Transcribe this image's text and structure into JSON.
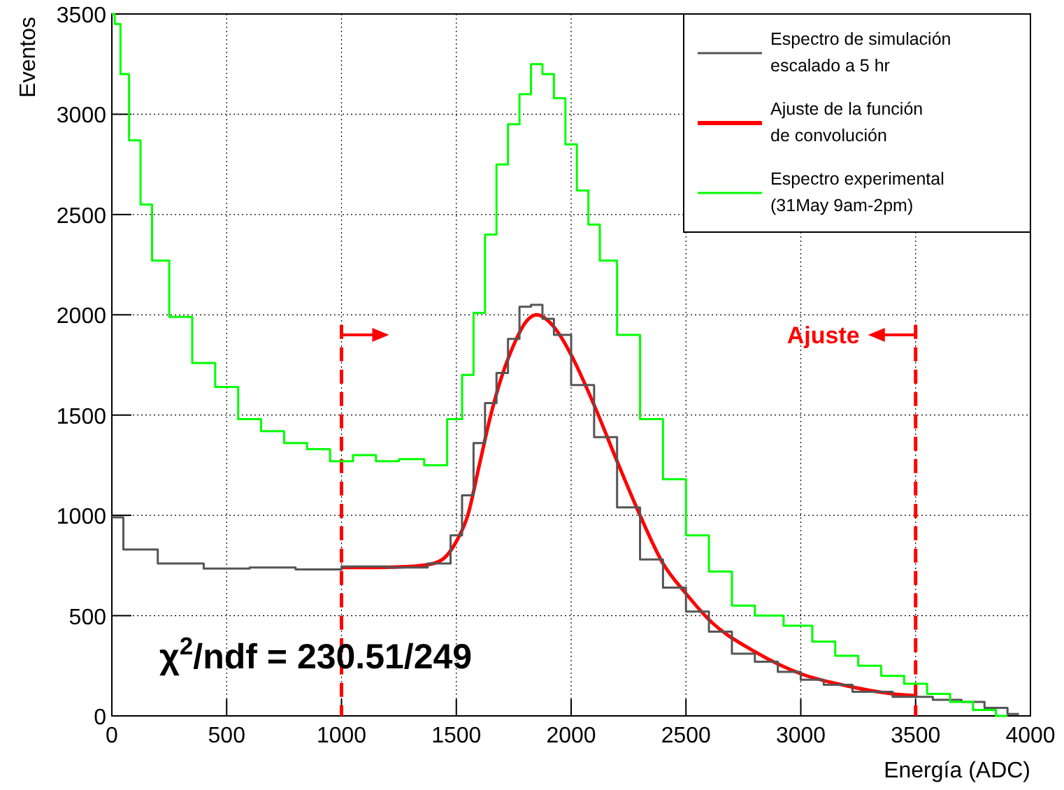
{
  "chart_data": {
    "type": "step",
    "xlabel": "Energía (ADC)",
    "ylabel": "Eventos",
    "xlim": [
      0,
      4000
    ],
    "ylim": [
      0,
      3500
    ],
    "xticks": [
      0,
      500,
      1000,
      1500,
      2000,
      2500,
      3000,
      3500,
      4000
    ],
    "yticks": [
      0,
      500,
      1000,
      1500,
      2000,
      2500,
      3000,
      3500
    ],
    "grid": true,
    "legend": "top right",
    "series": [
      {
        "name": "Espectro de simulación escalado a 5 hr",
        "color": "#555555",
        "x": [
          0,
          100,
          300,
          500,
          700,
          900,
          1100,
          1300,
          1450,
          1500,
          1550,
          1600,
          1650,
          1700,
          1750,
          1800,
          1850,
          1900,
          1950,
          2050,
          2150,
          2250,
          2350,
          2450,
          2550,
          2650,
          2750,
          2850,
          2950,
          3050,
          3150,
          3300,
          3500,
          3650,
          3750,
          3850,
          3950
        ],
        "values": [
          990,
          830,
          760,
          735,
          740,
          730,
          745,
          740,
          760,
          900,
          1100,
          1360,
          1560,
          1710,
          1880,
          2040,
          2050,
          1980,
          1900,
          1650,
          1390,
          1040,
          780,
          640,
          520,
          420,
          310,
          270,
          220,
          180,
          155,
          120,
          95,
          80,
          70,
          40,
          10
        ]
      },
      {
        "name": "Ajuste de la función de convolución",
        "type": "line",
        "color": "#ff0000",
        "x": [
          1000,
          1150,
          1300,
          1400,
          1450,
          1500,
          1550,
          1600,
          1650,
          1700,
          1750,
          1800,
          1850,
          1900,
          1950,
          2000,
          2100,
          2200,
          2300,
          2400,
          2500,
          2600,
          2800,
          3000,
          3200,
          3400,
          3500
        ],
        "values": [
          740,
          740,
          745,
          760,
          790,
          870,
          1000,
          1250,
          1500,
          1700,
          1850,
          1960,
          2000,
          1970,
          1900,
          1800,
          1550,
          1270,
          1000,
          760,
          610,
          480,
          320,
          210,
          150,
          110,
          100
        ]
      },
      {
        "name": "Espectro experimental (31May 9am-2pm)",
        "color": "#00ff00",
        "x": [
          0,
          25,
          50,
          100,
          150,
          200,
          300,
          400,
          500,
          600,
          700,
          800,
          900,
          1000,
          1100,
          1200,
          1300,
          1420,
          1500,
          1550,
          1600,
          1650,
          1700,
          1750,
          1800,
          1850,
          1900,
          1950,
          2000,
          2050,
          2100,
          2150,
          2250,
          2350,
          2450,
          2550,
          2650,
          2750,
          2850,
          3000,
          3100,
          3200,
          3300,
          3400,
          3500,
          3600,
          3700,
          3800,
          3900
        ],
        "values": [
          3500,
          3450,
          3200,
          2870,
          2550,
          2270,
          1990,
          1760,
          1640,
          1480,
          1420,
          1360,
          1330,
          1270,
          1300,
          1270,
          1280,
          1250,
          1480,
          1700,
          2010,
          2400,
          2750,
          2950,
          3100,
          3250,
          3200,
          3080,
          2850,
          2620,
          2450,
          2270,
          1900,
          1480,
          1180,
          900,
          720,
          550,
          500,
          450,
          370,
          300,
          250,
          200,
          160,
          110,
          70,
          30,
          0
        ]
      }
    ],
    "ref_lines": [
      {
        "axis": "x",
        "value": 1000,
        "label": null,
        "color": "#ff0000",
        "line_style": "dashed"
      },
      {
        "axis": "x",
        "value": 3500,
        "label": "Ajuste",
        "color": "#ff0000",
        "line_style": "dashed"
      }
    ],
    "annotations": [
      "χ$^{2}$/ndf = 230.51/249"
    ]
  }
}
